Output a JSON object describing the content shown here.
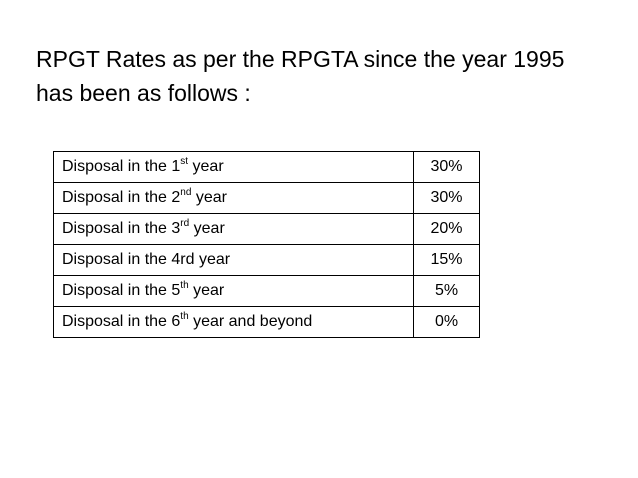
{
  "title": {
    "line1": "RPGT Rates as per the RPGTA since the year 1995",
    "line2": "has been as follows :"
  },
  "table": {
    "rows": [
      {
        "prefix": "Disposal in the 1",
        "sup": "st",
        "suffix": " year",
        "rate": "30%"
      },
      {
        "prefix": "Disposal in the 2",
        "sup": "nd",
        "suffix": " year",
        "rate": "30%"
      },
      {
        "prefix": "Disposal in the 3",
        "sup": "rd",
        "suffix": " year",
        "rate": "20%"
      },
      {
        "prefix": "Disposal in the 4rd year",
        "sup": "",
        "suffix": "",
        "rate": "15%"
      },
      {
        "prefix": "Disposal in the 5",
        "sup": "th",
        "suffix": " year",
        "rate": "5%"
      },
      {
        "prefix": "Disposal in the 6",
        "sup": "th",
        "suffix": " year and beyond",
        "rate": "0%"
      }
    ]
  }
}
